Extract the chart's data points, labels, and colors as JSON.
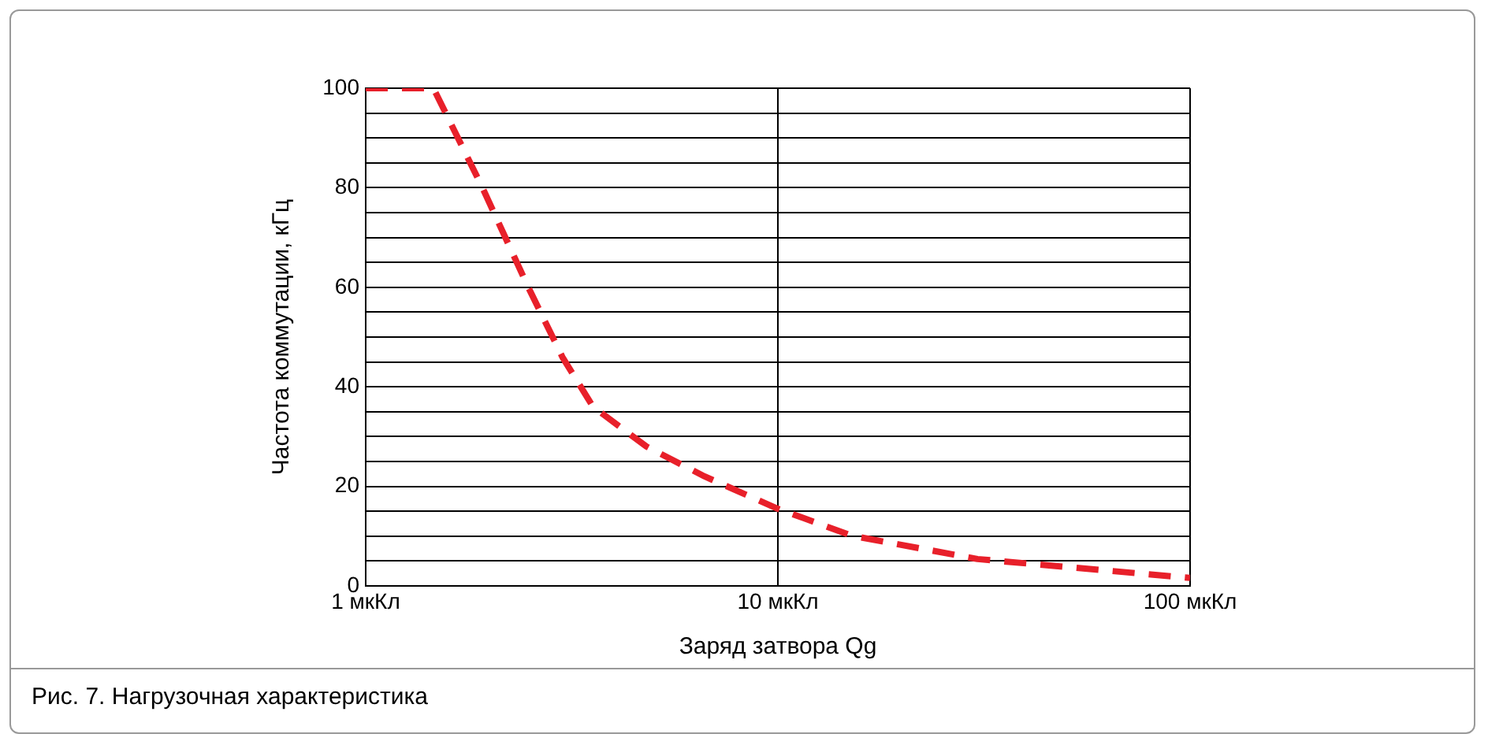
{
  "chart_data": {
    "type": "line",
    "xlabel": "Заряд затвора Qg",
    "ylabel": "Частота коммутации, кГц",
    "annotations": [
      "Рис. 7. Нагрузочная характеристика"
    ],
    "log": "x",
    "grid": true,
    "legend": false,
    "marker": "none",
    "line_style": "dashed",
    "xlim": [
      1,
      100
    ],
    "xticks": [
      {
        "value": 1,
        "label": "1 мкКл"
      },
      {
        "value": 10,
        "label": "10 мкКл"
      },
      {
        "value": 100,
        "label": "100 мкКл"
      }
    ],
    "ylim": [
      0,
      100
    ],
    "yticks": [
      0,
      {
        "value": 5,
        "label": null
      },
      {
        "value": 10,
        "label": null
      },
      {
        "value": 15,
        "label": null
      },
      20,
      {
        "value": 25,
        "label": null
      },
      {
        "value": 30,
        "label": null
      },
      {
        "value": 35,
        "label": null
      },
      40,
      {
        "value": 45,
        "label": null
      },
      {
        "value": 50,
        "label": null
      },
      {
        "value": 55,
        "label": null
      },
      60,
      {
        "value": 65,
        "label": null
      },
      {
        "value": 70,
        "label": null
      },
      {
        "value": 75,
        "label": null
      },
      80,
      {
        "value": 85,
        "label": null
      },
      {
        "value": 90,
        "label": null
      },
      {
        "value": 95,
        "label": null
      },
      100
    ],
    "x": [
      1,
      1.46,
      1.92,
      2.48,
      3.0,
      3.56,
      4.8,
      6.64,
      10,
      15.1,
      30.5,
      100
    ],
    "series": [
      {
        "color": "#e8202a",
        "values": [
          100,
          100,
          80,
          60,
          46,
          36,
          28,
          22,
          15.5,
          10.1,
          5.4,
          1.6
        ]
      }
    ]
  }
}
